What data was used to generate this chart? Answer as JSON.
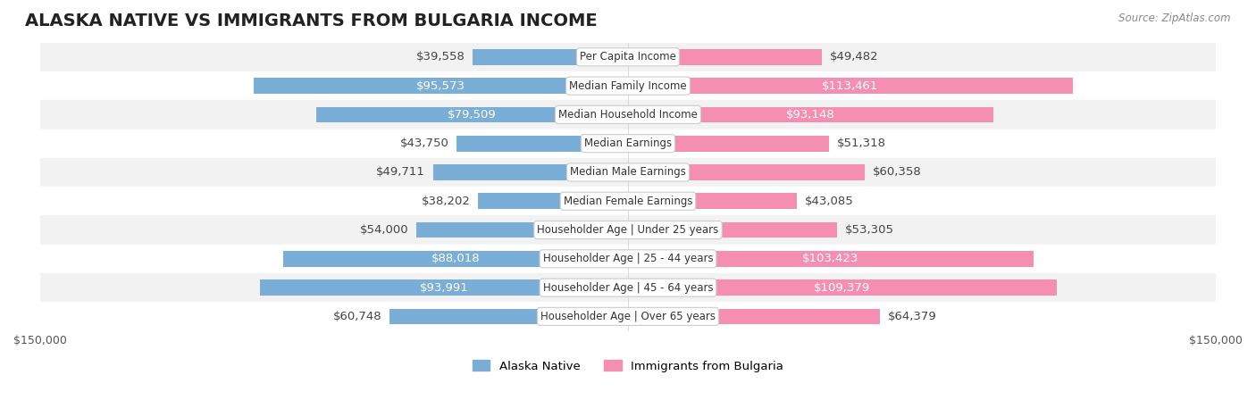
{
  "title": "ALASKA NATIVE VS IMMIGRANTS FROM BULGARIA INCOME",
  "source": "Source: ZipAtlas.com",
  "categories": [
    "Per Capita Income",
    "Median Family Income",
    "Median Household Income",
    "Median Earnings",
    "Median Male Earnings",
    "Median Female Earnings",
    "Householder Age | Under 25 years",
    "Householder Age | 25 - 44 years",
    "Householder Age | 45 - 64 years",
    "Householder Age | Over 65 years"
  ],
  "alaska_values": [
    39558,
    95573,
    79509,
    43750,
    49711,
    38202,
    54000,
    88018,
    93991,
    60748
  ],
  "bulgaria_values": [
    49482,
    113461,
    93148,
    51318,
    60358,
    43085,
    53305,
    103423,
    109379,
    64379
  ],
  "alaska_labels": [
    "$39,558",
    "$95,573",
    "$79,509",
    "$43,750",
    "$49,711",
    "$38,202",
    "$54,000",
    "$88,018",
    "$93,991",
    "$60,748"
  ],
  "bulgaria_labels": [
    "$49,482",
    "$113,461",
    "$93,148",
    "$51,318",
    "$60,358",
    "$43,085",
    "$53,305",
    "$103,423",
    "$109,379",
    "$64,379"
  ],
  "alaska_color": "#7aaed6",
  "bulgaria_color": "#f48fb1",
  "alaska_label_inside": [
    false,
    true,
    true,
    false,
    false,
    false,
    false,
    true,
    true,
    false
  ],
  "bulgaria_label_inside": [
    false,
    true,
    true,
    false,
    false,
    false,
    false,
    true,
    true,
    false
  ],
  "max_value": 150000,
  "legend_alaska": "Alaska Native",
  "legend_bulgaria": "Immigrants from Bulgaria",
  "row_bg_color": "#f0f0f0",
  "bar_height": 0.55,
  "title_fontsize": 14,
  "label_fontsize": 9.5
}
